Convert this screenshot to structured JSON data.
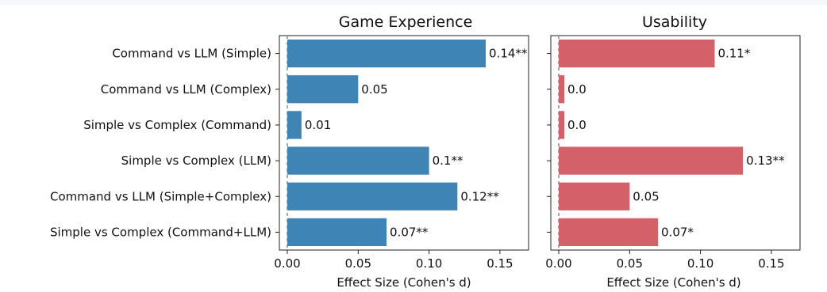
{
  "chart_data": [
    {
      "type": "bar",
      "orientation": "horizontal",
      "title": "Game Experience",
      "xlabel": "Effect Size (Cohen's d)",
      "ylabel": "",
      "xlim": [
        0,
        0.17
      ],
      "xticks": [
        "0.00",
        "0.05",
        "0.10",
        "0.15"
      ],
      "categories": [
        "Command vs LLM (Simple)",
        "Command vs LLM (Complex)",
        "Simple vs Complex (Command)",
        "Simple vs Complex (LLM)",
        "Command vs LLM (Simple+Complex)",
        "Simple vs Complex (Command+LLM)"
      ],
      "values": [
        0.14,
        0.05,
        0.01,
        0.1,
        0.12,
        0.07
      ],
      "bar_labels": [
        "0.14**",
        "0.05",
        "0.01",
        "0.1**",
        "0.12**",
        "0.07**"
      ],
      "color": "#3e84b4",
      "grid": false
    },
    {
      "type": "bar",
      "orientation": "horizontal",
      "title": "Usability",
      "xlabel": "Effect Size (Cohen's d)",
      "ylabel": "",
      "xlim": [
        0,
        0.17
      ],
      "xticks": [
        "0.00",
        "0.05",
        "0.10",
        "0.15"
      ],
      "categories": [
        "Command vs LLM (Simple)",
        "Command vs LLM (Complex)",
        "Simple vs Complex (Command)",
        "Simple vs Complex (LLM)",
        "Command vs LLM (Simple+Complex)",
        "Simple vs Complex (Command+LLM)"
      ],
      "values": [
        0.11,
        0.0,
        0.0,
        0.13,
        0.05,
        0.07
      ],
      "bar_labels": [
        "0.11*",
        "0.0",
        "0.0",
        "0.13**",
        "0.05",
        "0.07*"
      ],
      "color": "#d4606a",
      "grid": false
    }
  ]
}
